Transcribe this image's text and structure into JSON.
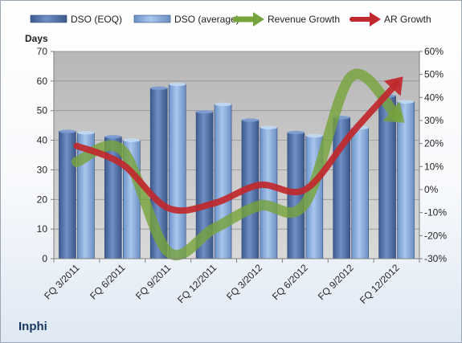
{
  "company_label": "Inphi",
  "chart_data": {
    "type": "bar",
    "categories": [
      "FQ 3/2011",
      "FQ 6/2011",
      "FQ 9/2011",
      "FQ 12/2011",
      "FQ 3/2012",
      "FQ 6/2012",
      "FQ 9/2012",
      "FQ 12/2012"
    ],
    "series": [
      {
        "name": "DSO (EOQ)",
        "kind": "bar",
        "axis": "left",
        "color": "#4f6fa8",
        "values": [
          43.0,
          41.2,
          57.6,
          49.6,
          46.8,
          42.6,
          47.7,
          55.0
        ]
      },
      {
        "name": "DSO (average)",
        "kind": "bar",
        "axis": "left",
        "color": "#7ea3d4",
        "values": [
          42.5,
          40.0,
          58.9,
          52.1,
          44.3,
          41.5,
          44.2,
          53.0
        ]
      },
      {
        "name": "Revenue Growth",
        "kind": "line",
        "axis": "right",
        "color": "#77a33b",
        "values": [
          12,
          17,
          -27,
          -17,
          -7,
          -6,
          49,
          32
        ]
      },
      {
        "name": "AR Growth",
        "kind": "line",
        "axis": "right",
        "color": "#c0282d",
        "values": [
          19,
          11,
          -8,
          -6,
          2,
          0,
          24,
          46
        ]
      }
    ],
    "ylabel": "Days",
    "ylim": [
      0,
      70
    ],
    "yticks": [
      "0",
      "10",
      "20",
      "30",
      "40",
      "50",
      "60",
      "70"
    ],
    "y2lim": [
      -30,
      60
    ],
    "y2ticks": [
      "-30%",
      "-20%",
      "-10%",
      "0%",
      "10%",
      "20%",
      "30%",
      "40%",
      "50%",
      "60%"
    ],
    "grid": true,
    "legend_position": "top"
  }
}
